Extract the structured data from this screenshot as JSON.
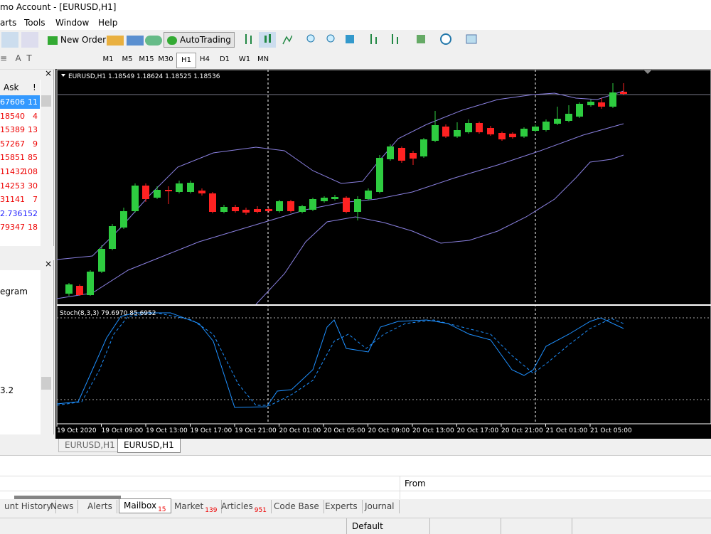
{
  "window": {
    "title": "mo Account - [EURUSD,H1]"
  },
  "menu": [
    "arts",
    "Tools",
    "Window",
    "Help"
  ],
  "toolbar": {
    "new_order": "New Order",
    "auto_trading": "AutoTrading"
  },
  "timeframes": [
    "M1",
    "M5",
    "M15",
    "M30",
    "H1",
    "H4",
    "D1",
    "W1",
    "MN"
  ],
  "market_watch": {
    "headers": [
      "Ask",
      "!"
    ],
    "rows": [
      [
        "67606",
        "11"
      ],
      [
        "18540",
        "4"
      ],
      [
        "15389",
        "13"
      ],
      [
        "57267",
        "9"
      ],
      [
        "15851",
        "85"
      ],
      [
        "11432",
        "108"
      ],
      [
        "14253",
        "30"
      ],
      [
        "31141",
        "7"
      ],
      [
        "2.736",
        "152"
      ],
      [
        "79347",
        "18"
      ]
    ]
  },
  "navigator": {
    "items": [
      "egram",
      "3.2"
    ]
  },
  "chart": {
    "info": "EURUSD,H1  1.18549 1.18624 1.18525 1.18536",
    "indicator": "Stoch(8,3,3) 79.6970 85.6952",
    "time_labels": [
      "19 Oct 2020",
      "19 Oct 09:00",
      "19 Oct 13:00",
      "19 Oct 17:00",
      "19 Oct 21:00",
      "20 Oct 01:00",
      "20 Oct 05:00",
      "20 Oct 09:00",
      "20 Oct 13:00",
      "20 Oct 17:00",
      "20 Oct 21:00",
      "21 Oct 01:00",
      "21 Oct 05:00"
    ]
  },
  "chart_tabs": [
    "EURUSD,H1",
    "EURUSD,H1"
  ],
  "terminal": {
    "column": "From",
    "tabs": [
      {
        "label": "unt History"
      },
      {
        "label": "News"
      },
      {
        "label": "Alerts"
      },
      {
        "label": "Mailbox",
        "badge": "15"
      },
      {
        "label": "Market",
        "badge": "139"
      },
      {
        "label": "Articles",
        "badge": "951"
      },
      {
        "label": "Code Base"
      },
      {
        "label": "Experts"
      },
      {
        "label": "Journal"
      }
    ]
  },
  "status": {
    "profile": "Default"
  }
}
